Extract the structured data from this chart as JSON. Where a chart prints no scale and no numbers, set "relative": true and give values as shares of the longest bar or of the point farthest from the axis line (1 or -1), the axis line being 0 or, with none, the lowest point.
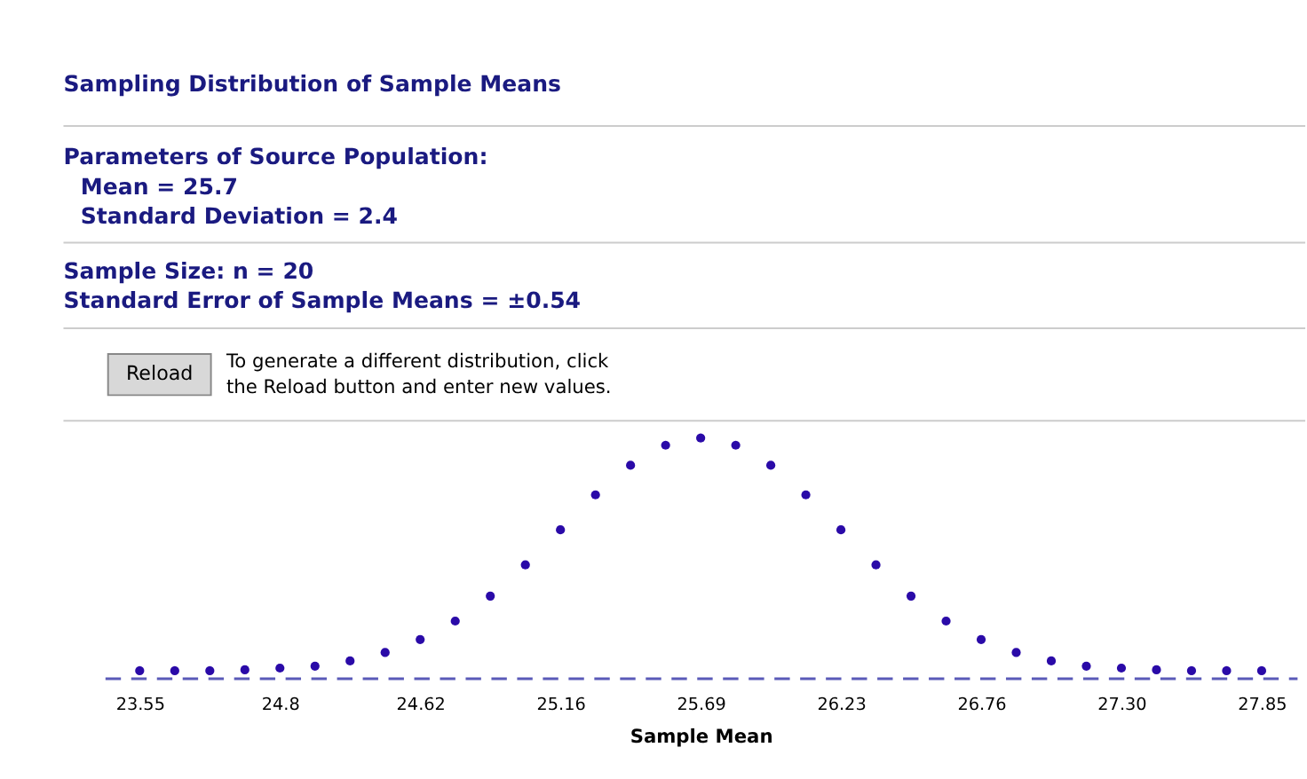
{
  "chart_data": {
    "type": "scatter",
    "title": "Sampling Distribution of Sample Means",
    "annotations": [
      "Parameters of Source Population:",
      "Mean = 25.7",
      "Standard Deviation = 2.4",
      "Sample Size: n = 20",
      "Standard Error of Sample Means = ±0.54",
      "Reload",
      "To generate a different distribution, click",
      "the Reload button and enter new values."
    ],
    "xlabel": "Sample Mean",
    "categories": [
      "23.55",
      null,
      null,
      null,
      "24.8",
      null,
      null,
      null,
      "24.62",
      null,
      null,
      null,
      "25.16",
      null,
      null,
      null,
      "25.69",
      null,
      null,
      null,
      "26.23",
      null,
      null,
      null,
      "26.76",
      null,
      null,
      null,
      "27.30",
      null,
      null,
      null,
      "27.85"
    ],
    "relative": true,
    "series": [
      {
        "color": "#2a0aa8",
        "values": [
          0.03,
          0.03,
          0.03,
          0.034,
          0.041,
          0.049,
          0.071,
          0.106,
          0.16,
          0.237,
          0.341,
          0.471,
          0.617,
          0.763,
          0.886,
          0.97,
          1,
          0.97,
          0.886,
          0.763,
          0.617,
          0.471,
          0.341,
          0.237,
          0.16,
          0.106,
          0.071,
          0.049,
          0.041,
          0.034,
          0.03,
          0.03,
          0.03
        ]
      }
    ],
    "marker": "circle",
    "grid": false,
    "tick_labels": "x"
  }
}
